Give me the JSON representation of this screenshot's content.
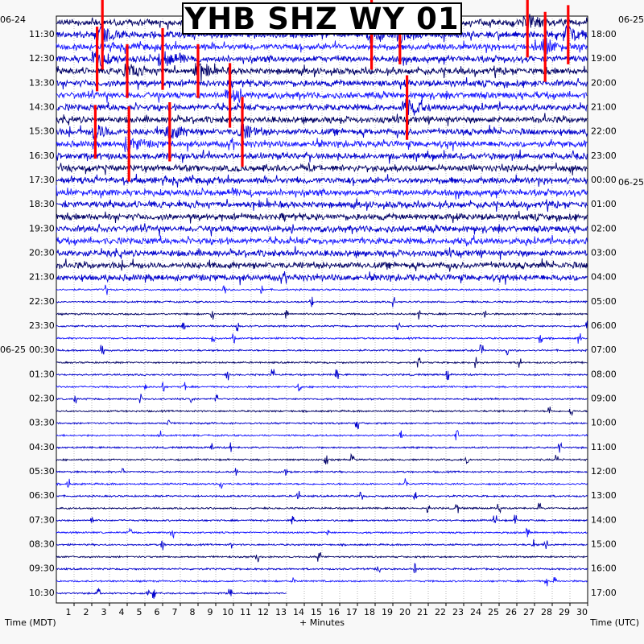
{
  "chart_data": {
    "type": "line",
    "title": "YHB SHZ WY 01",
    "left_axis_label": "Time (MDT)",
    "right_axis_label": "Time (UTC)",
    "xlabel": "+ Minutes",
    "xlim": [
      0,
      30
    ],
    "x_ticks": [
      "1",
      "2",
      "3",
      "4",
      "5",
      "6",
      "7",
      "8",
      "9",
      "10",
      "11",
      "12",
      "13",
      "14",
      "15",
      "16",
      "17",
      "18",
      "19",
      "20",
      "21",
      "22",
      "23",
      "24",
      "25",
      "26",
      "27",
      "28",
      "29",
      "30"
    ],
    "left_date_labels": [
      {
        "text": "06-24",
        "row": 0
      },
      {
        "text": "06-25",
        "row": 26
      }
    ],
    "right_date_labels": [
      {
        "text": "06-25",
        "row": 0
      },
      {
        "text": "06-25",
        "row": 13
      }
    ],
    "left_hour_labels": [
      "11:30",
      "12:30",
      "13:30",
      "14:30",
      "15:30",
      "16:30",
      "17:30",
      "18:30",
      "19:30",
      "20:30",
      "21:30",
      "22:30",
      "23:30",
      "00:30",
      "01:30",
      "02:30",
      "03:30",
      "04:30",
      "05:30",
      "06:30",
      "07:30",
      "08:30",
      "09:30",
      "10:30"
    ],
    "right_hour_labels": [
      "18:00",
      "19:00",
      "20:00",
      "21:00",
      "22:00",
      "23:00",
      "00:00",
      "01:00",
      "02:00",
      "03:00",
      "04:00",
      "05:00",
      "06:00",
      "07:00",
      "08:00",
      "09:00",
      "10:00",
      "11:00",
      "12:00",
      "13:00",
      "14:00",
      "15:00",
      "16:00",
      "17:00"
    ],
    "row_minutes": 30,
    "trace_rows": 48,
    "last_row_end_minute": 13,
    "colors": {
      "trace_dark": "#000066",
      "trace_blue": "#0000cc",
      "trace_bright": "#1a1aff",
      "clip": "#ff0000",
      "grid": "#888888"
    },
    "events": [
      {
        "row": 1,
        "minute": 2.6,
        "amp": 2.6
      },
      {
        "row": 3,
        "minute": 2.3,
        "amp": 2.4
      },
      {
        "row": 4,
        "minute": 4.0,
        "amp": 2.0
      },
      {
        "row": 3,
        "minute": 6.0,
        "amp": 2.3
      },
      {
        "row": 4,
        "minute": 8.0,
        "amp": 2.0
      },
      {
        "row": 6,
        "minute": 9.8,
        "amp": 2.4
      },
      {
        "row": 9,
        "minute": 2.2,
        "amp": 2.0
      },
      {
        "row": 10,
        "minute": 4.1,
        "amp": 2.8
      },
      {
        "row": 9,
        "minute": 6.4,
        "amp": 2.2
      },
      {
        "row": 9,
        "minute": 10.5,
        "amp": 2.6
      },
      {
        "row": 1,
        "minute": 17.8,
        "amp": 2.6
      },
      {
        "row": 1,
        "minute": 19.4,
        "amp": 2.2
      },
      {
        "row": 0,
        "minute": 26.6,
        "amp": 2.6
      },
      {
        "row": 1,
        "minute": 28.9,
        "amp": 2.2
      },
      {
        "row": 2,
        "minute": 27.6,
        "amp": 2.6
      },
      {
        "row": 7,
        "minute": 19.8,
        "amp": 2.4
      }
    ]
  }
}
